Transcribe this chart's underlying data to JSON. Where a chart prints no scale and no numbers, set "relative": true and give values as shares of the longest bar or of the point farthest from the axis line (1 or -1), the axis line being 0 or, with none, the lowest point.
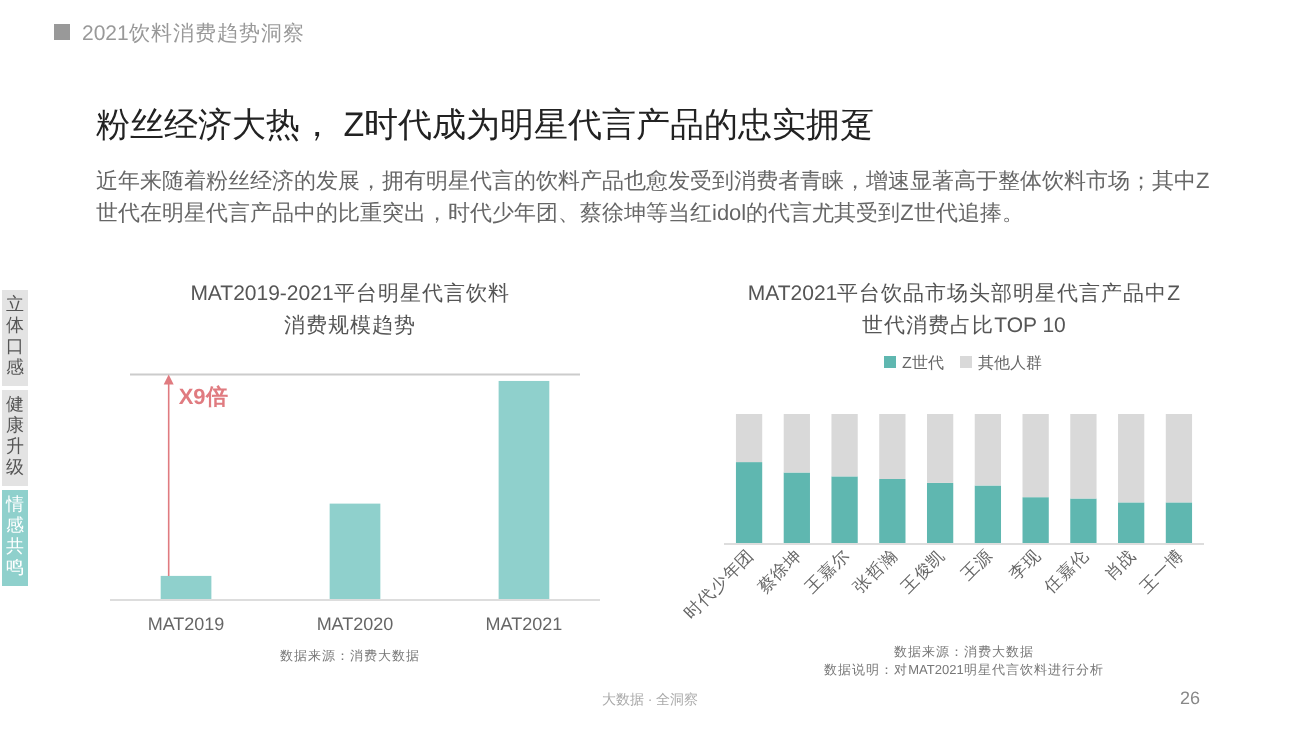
{
  "chart_data": [
    {
      "type": "other",
      "title": "粉丝经济大热， Z时代成为明星代言产品的忠实拥趸",
      "subtitle": "近年来随着粉丝经济的发展，拥有明星代言的饮料产品也愈发受到消费者青睐，增速显著高于整体饮料市场；其中Z世代在明星代言产品中的比重突出，时代少年团、蔡徐坤等当红idol的代言尤其受到Z世代追捧。",
      "annotations": [
        "2021饮料消费趋势洞察",
        "立体口感",
        "健康升级",
        "情感共鸣",
        "大数据 · 全洞察",
        "26"
      ]
    },
    {
      "type": "bar",
      "title": "MAT2019-2021平台明星代言饮料消费规模趋势",
      "categories": [
        "MAT2019",
        "MAT2020",
        "MAT2021"
      ],
      "values": [
        0.11,
        0.44,
        1
      ],
      "color": "#8fd0cc",
      "relative": true,
      "ref_lines": [
        {
          "axis": "y",
          "value": 1.03,
          "color": "#cccccc"
        }
      ],
      "annotations": [
        "X9倍",
        "数据来源：消费大数据"
      ]
    },
    {
      "type": "bar",
      "title": "MAT2021平台饮品市场头部明星代言产品中Z世代消费占比TOP 10",
      "categories": [
        "时代少年团",
        "蔡徐坤",
        "王嘉尔",
        "张哲瀚",
        "王俊凯",
        "王源",
        "李现",
        "任嘉伦",
        "肖战",
        "王一博"
      ],
      "stacked": true,
      "relative": true,
      "legend": "top",
      "series": [
        {
          "name": "Z世代",
          "color": "#5fb7b0",
          "values": [
            0.63,
            0.55,
            0.52,
            0.5,
            0.47,
            0.45,
            0.36,
            0.35,
            0.32,
            0.32
          ]
        },
        {
          "name": "其他人群",
          "color": "#d9d9d9",
          "values": [
            0.37,
            0.45,
            0.48,
            0.5,
            0.53,
            0.55,
            0.64,
            0.65,
            0.68,
            0.68
          ]
        }
      ],
      "annotations": [
        "数据来源：消费大数据",
        "数据说明：对MAT2021明星代言饮料进行分析"
      ]
    }
  ]
}
